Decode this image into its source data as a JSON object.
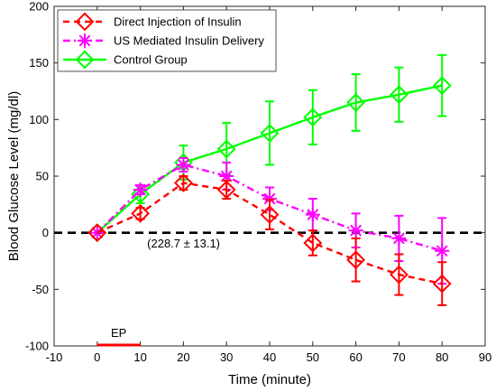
{
  "chart_data": {
    "type": "line",
    "xlabel": "Time (minute)",
    "ylabel": "Blood Glucose Level (mg/dl)",
    "xlim": [
      -10,
      90
    ],
    "ylim": [
      -100,
      200
    ],
    "xticks": [
      -10,
      0,
      10,
      20,
      30,
      40,
      50,
      60,
      70,
      80,
      90
    ],
    "yticks": [
      -100,
      -50,
      0,
      50,
      100,
      150,
      200
    ],
    "grid": false,
    "legend_position": "top-left",
    "series": [
      {
        "name": "Direct Injection of Insulin",
        "color": "#ff0000",
        "line_style": "dashed",
        "marker": "diamond",
        "x": [
          0,
          10,
          20,
          30,
          40,
          50,
          60,
          70,
          80
        ],
        "y": [
          0,
          17,
          44,
          38,
          16,
          -9,
          -24,
          -37,
          -45
        ],
        "error": [
          0,
          5,
          6,
          8,
          13,
          11,
          19,
          18,
          19
        ]
      },
      {
        "name": "US Mediated Insulin Delivery",
        "color": "#ff00ff",
        "line_style": "dashdot",
        "marker": "asterisk",
        "x": [
          0,
          10,
          20,
          30,
          40,
          50,
          60,
          70,
          80
        ],
        "y": [
          0,
          38,
          60,
          50,
          30,
          16,
          2,
          -5,
          -16
        ],
        "error": [
          0,
          4,
          6,
          12,
          10,
          14,
          15,
          20,
          29
        ]
      },
      {
        "name": "Control Group",
        "color": "#00ff00",
        "line_style": "solid",
        "marker": "diamond",
        "x": [
          0,
          10,
          20,
          30,
          40,
          50,
          60,
          70,
          80
        ],
        "y": [
          0,
          34,
          62,
          74,
          88,
          102,
          115,
          122,
          130
        ],
        "error": [
          0,
          8,
          15,
          23,
          28,
          24,
          25,
          24,
          27
        ]
      }
    ],
    "reference_line": {
      "y": 0,
      "color": "#000000",
      "line_style": "dashed"
    },
    "annotations": [
      {
        "text": "(228.7 ± 13.1)",
        "x": 10,
        "y": -10
      }
    ],
    "ep_bar": {
      "label": "EP",
      "x_start": 0,
      "x_end": 10,
      "color": "#ff0000"
    }
  }
}
